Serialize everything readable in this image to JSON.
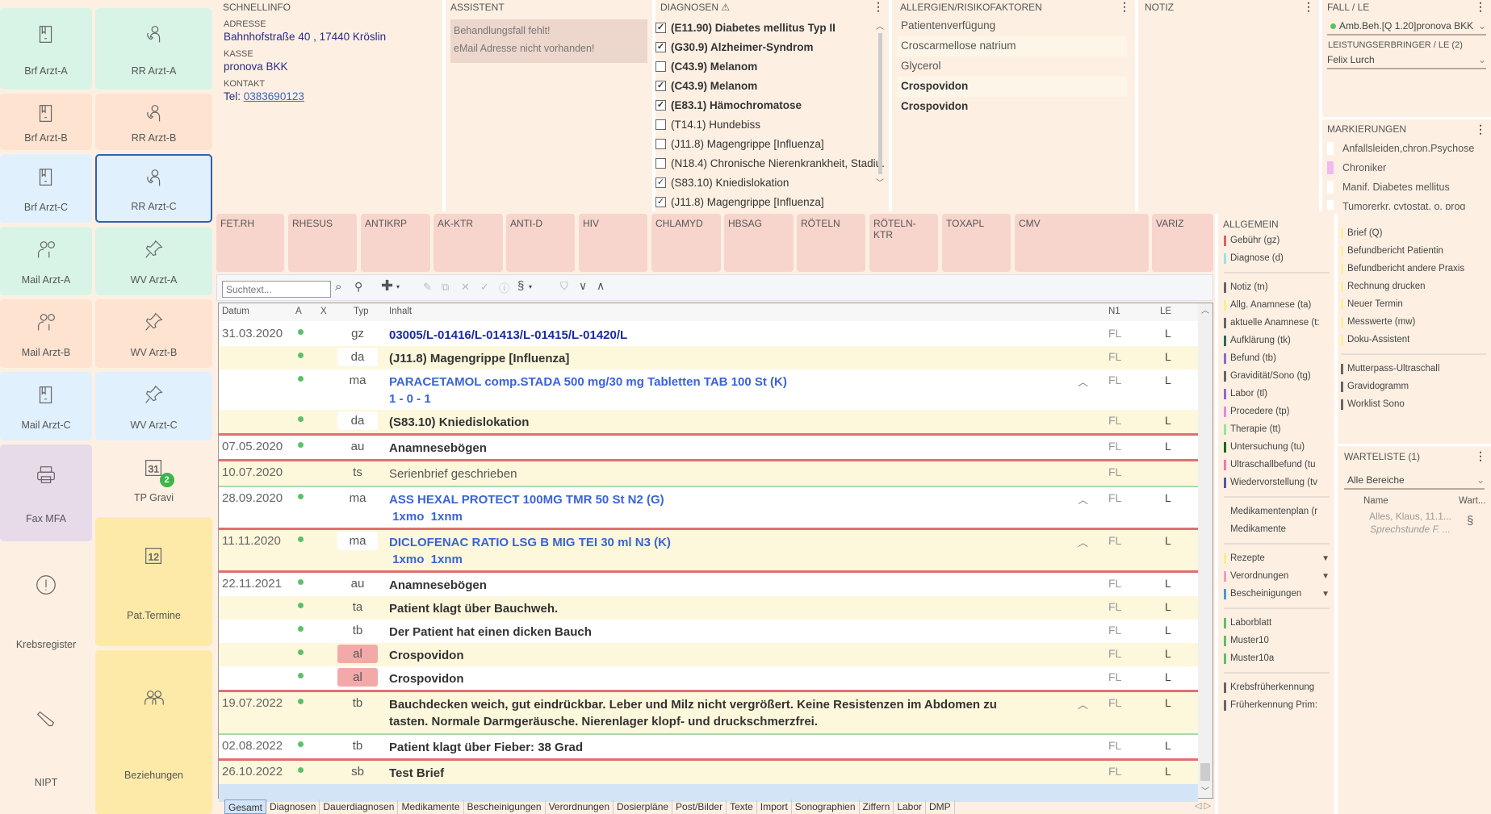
{
  "sidebar": {
    "tiles": [
      {
        "label": "Brf Arzt-A",
        "icon": "book-icon",
        "color": "#d8f4e7"
      },
      {
        "label": "RR Arzt-A",
        "icon": "phone-person-icon",
        "color": "#d8f4e7"
      },
      {
        "label": "Brf Arzt-B",
        "icon": "book-icon",
        "color": "#fde3d0"
      },
      {
        "label": "RR Arzt-B",
        "icon": "phone-person-icon",
        "color": "#fde3d0"
      },
      {
        "label": "Brf Arzt-C",
        "icon": "book-icon",
        "color": "#e0f0fd"
      },
      {
        "label": "RR Arzt-C",
        "icon": "phone-person-icon",
        "color": "#e0f0fd",
        "selected": true
      },
      {
        "label": "Mail Arzt-A",
        "icon": "mail-person-icon",
        "color": "#d8f4e7"
      },
      {
        "label": "WV Arzt-A",
        "icon": "pin-icon",
        "color": "#d8f4e7"
      },
      {
        "label": "Mail Arzt-B",
        "icon": "mail-person-icon",
        "color": "#fde3d0"
      },
      {
        "label": "WV Arzt-B",
        "icon": "pin-icon",
        "color": "#fde3d0"
      },
      {
        "label": "Mail Arzt-C",
        "icon": "book-icon",
        "color": "#e0f0fd"
      },
      {
        "label": "WV Arzt-C",
        "icon": "pin-icon",
        "color": "#e0f0fd"
      },
      {
        "label": "Fax MFA",
        "icon": "printer-icon",
        "color": "#e7dbea"
      },
      {
        "label": "TP Gravi",
        "icon": "calendar-31-icon",
        "color": "#fdefe2",
        "badge": "2"
      },
      {
        "label": "Pat.Termine",
        "icon": "calendar-12-icon",
        "color": "#fdeaa8"
      },
      {
        "label": "Krebsregister",
        "icon": "alert-circle-icon",
        "color": "#fdefe2"
      },
      {
        "label": "NIPT",
        "icon": "pen-icon",
        "color": "#fdefe2"
      },
      {
        "label": "Beziehungen",
        "icon": "people-icon",
        "color": "#fdeaa8"
      }
    ]
  },
  "schnellinfo": {
    "title": "SCHNELLINFO",
    "adresse_label": "ADRESSE",
    "adresse": "Bahnhofstraße 40 , 17440 Kröslin",
    "kasse_label": "KASSE",
    "kasse": "pronova BKK",
    "kontakt_label": "KONTAKT",
    "tel_prefix": "Tel: ",
    "tel": "0383690123"
  },
  "assistent": {
    "title": "ASSISTENT",
    "messages": [
      "Behandlungsfall fehlt!",
      "eMail Adresse nicht vorhanden!"
    ]
  },
  "diagnosen": {
    "title": "DIAGNOSEN",
    "items": [
      {
        "text": "(E11.90) Diabetes mellitus Typ II",
        "checked": true,
        "bold": true
      },
      {
        "text": "(G30.9) Alzheimer-Syndrom",
        "checked": true,
        "bold": true
      },
      {
        "text": "(C43.9) Melanom",
        "checked": false,
        "bold": true
      },
      {
        "text": "(C43.9) Melanom",
        "checked": true,
        "bold": true
      },
      {
        "text": "(E83.1) Hämochromatose",
        "checked": true,
        "bold": true
      },
      {
        "text": "(T14.1) Hundebiss",
        "checked": false,
        "bold": false
      },
      {
        "text": "(J11.8) Magengrippe [Influenza]",
        "checked": false,
        "bold": false
      },
      {
        "text": "(N18.4) Chronische Nierenkrankheit, Stadiu.",
        "checked": false,
        "bold": false
      },
      {
        "text": "(S83.10) Kniedislokation",
        "checked": true,
        "bold": false
      },
      {
        "text": "(J11.8) Magengrippe [Influenza]",
        "checked": true,
        "bold": false
      }
    ]
  },
  "allergien": {
    "title": "ALLERGIEN/RISIKOFAKTOREN",
    "items": [
      {
        "text": "Patientenverfügung",
        "bold": false,
        "hl": false
      },
      {
        "text": "Croscarmellose natrium",
        "bold": false,
        "hl": true
      },
      {
        "text": "Glycerol",
        "bold": false,
        "hl": false
      },
      {
        "text": "Crospovidon",
        "bold": true,
        "hl": true
      },
      {
        "text": "Crospovidon",
        "bold": true,
        "hl": false
      }
    ]
  },
  "notiz": {
    "title": "NOTIZ"
  },
  "fall": {
    "title": "FALL / LE",
    "selected": "Amb.Beh.[Q 1.20]pronova BKK",
    "le_label": "LEISTUNGSERBRINGER / LE (2)",
    "le_value": "Felix Lurch"
  },
  "markierungen": {
    "title": "MARKIERUNGEN",
    "items": [
      {
        "text": "Anfallsleiden,chron.Psychose",
        "color": "#ffffff"
      },
      {
        "text": "Chroniker",
        "color": "#f2b8f0"
      },
      {
        "text": "Manif. Diabetes mellitus",
        "color": "#ffffff"
      },
      {
        "text": "Tumorerkr. cytostat. o. prog",
        "color": "#ffffff"
      }
    ]
  },
  "labs": [
    "FET.RH",
    "RHESUS",
    "ANTIKRP",
    "AK-KTR",
    "ANTI-D",
    "HIV",
    "CHLAMYD",
    "HBSAG",
    "RÖTELN",
    "RÖTELN-KTR",
    "TOXAPL",
    "CMV",
    "VARIZ"
  ],
  "toolbar": {
    "search_placeholder": "Suchtext..."
  },
  "table": {
    "headers": {
      "datum": "Datum",
      "a": "A",
      "x": "X",
      "typ": "Typ",
      "inhalt": "Inhalt",
      "n1": "N1",
      "le": "LE"
    },
    "rows": [
      {
        "datum": "31.03.2020",
        "dot": true,
        "typ": "gz",
        "lines": [
          "03005/L-01416/L-01413/L-01415/L-01420/L"
        ],
        "style": "darkblue",
        "n1": "FL",
        "le": "L",
        "bg": "#ffffff"
      },
      {
        "datum": "",
        "dot": true,
        "typ": "da",
        "lines": [
          "(J11.8) Magengrippe [Influenza]"
        ],
        "style": "bold",
        "n1": "FL",
        "le": "L",
        "bg": "#fdf7dc",
        "typbox": true
      },
      {
        "datum": "",
        "dot": true,
        "typ": "ma",
        "lines": [
          "PARACETAMOL comp.STADA 500 mg/30 mg Tabletten TAB 100 St (K)",
          "1 - 0 - 1"
        ],
        "style": "blue",
        "caret": true,
        "n1": "FL",
        "le": "L",
        "bg": "#ffffff"
      },
      {
        "datum": "",
        "dot": true,
        "typ": "da",
        "lines": [
          "(S83.10) Kniedislokation"
        ],
        "style": "bold",
        "n1": "FL",
        "le": "L",
        "bg": "#fdf7dc",
        "typbox": true,
        "sep": "red"
      },
      {
        "datum": "07.05.2020",
        "dot": true,
        "typ": "au",
        "lines": [
          "Anamnesebögen"
        ],
        "style": "bold",
        "n1": "FL",
        "le": "L",
        "bg": "#ffffff",
        "sep": "red"
      },
      {
        "datum": "10.07.2020",
        "dot": false,
        "typ": "ts",
        "lines": [
          "Serienbrief geschrieben"
        ],
        "style": "normal",
        "n1": "FL",
        "le": "",
        "bg": "#fdf7dc",
        "sep": "green"
      },
      {
        "datum": "28.09.2020",
        "dot": true,
        "typ": "ma",
        "lines": [
          "ASS HEXAL PROTECT 100MG TMR 50 St N2 (G)",
          " 1xmo  1xnm"
        ],
        "style": "blue",
        "caret": true,
        "n1": "FL",
        "le": "L",
        "bg": "#ffffff",
        "sep": "red"
      },
      {
        "datum": "11.11.2020",
        "dot": true,
        "typ": "ma",
        "lines": [
          "DICLOFENAC RATIO LSG B MIG TEI 30 ml N3 (K)",
          " 1xmo  1xnm"
        ],
        "style": "blue",
        "caret": true,
        "n1": "FL",
        "le": "L",
        "bg": "#fdf7dc",
        "typbox": true,
        "sep": "red"
      },
      {
        "datum": "22.11.2021",
        "dot": true,
        "typ": "au",
        "lines": [
          "Anamnesebögen"
        ],
        "style": "bold",
        "n1": "FL",
        "le": "L",
        "bg": "#ffffff"
      },
      {
        "datum": "",
        "dot": true,
        "typ": "ta",
        "lines": [
          "Patient klagt über Bauchweh."
        ],
        "style": "bold",
        "n1": "FL",
        "le": "L",
        "bg": "#fdf7dc"
      },
      {
        "datum": "",
        "dot": true,
        "typ": "tb",
        "lines": [
          "Der Patient hat einen dicken Bauch"
        ],
        "style": "bold",
        "n1": "FL",
        "le": "L",
        "bg": "#ffffff"
      },
      {
        "datum": "",
        "dot": true,
        "typ": "al",
        "lines": [
          "Crospovidon"
        ],
        "style": "bold",
        "n1": "FL",
        "le": "L",
        "bg": "#fdf7dc",
        "typbadge": "#f4a9a9"
      },
      {
        "datum": "",
        "dot": true,
        "typ": "al",
        "lines": [
          "Crospovidon"
        ],
        "style": "bold",
        "n1": "FL",
        "le": "L",
        "bg": "#ffffff",
        "typbadge": "#f4a9a9",
        "sep": "red"
      },
      {
        "datum": "19.07.2022",
        "dot": true,
        "typ": "tb",
        "lines": [
          "Bauchdecken weich, gut eindrückbar. Leber und Milz nicht vergrößert. Keine Resistenzen im Abdomen zu",
          "tasten. Normale Darmgeräusche. Nierenlager klopf- und druckschmerzfrei."
        ],
        "style": "bold",
        "caret": true,
        "n1": "FL",
        "le": "L",
        "bg": "#fdf7dc",
        "sep": "green"
      },
      {
        "datum": "02.08.2022",
        "dot": true,
        "typ": "tb",
        "lines": [
          "Patient klagt über Fieber: 38 Grad"
        ],
        "style": "bold",
        "n1": "FL",
        "le": "L",
        "bg": "#ffffff",
        "sep": "red"
      },
      {
        "datum": "26.10.2022",
        "dot": true,
        "typ": "sb",
        "lines": [
          "Test Brief"
        ],
        "style": "bold",
        "n1": "FL",
        "le": "L",
        "bg": "#fdf7dc"
      }
    ]
  },
  "bottom_tabs": [
    "Gesamt",
    "Diagnosen",
    "Dauerdiagnosen",
    "Medikamente",
    "Bescheinigungen",
    "Verordnungen",
    "Dosierpläne",
    "Post/Bilder",
    "Texte",
    "Import",
    "Sonographien",
    "Ziffern",
    "Labor",
    "DMP"
  ],
  "allgemein": {
    "title": "ALLGEMEIN",
    "groups": [
      [
        {
          "text": "Gebühr (gz)",
          "color": "#e06060"
        },
        {
          "text": "Diagnose (d)",
          "color": "#8ee8e8"
        }
      ],
      [
        {
          "text": "Notiz (tn)",
          "color": "#666"
        },
        {
          "text": "Allg. Anamnese (ta)",
          "color": "#f5f08a"
        },
        {
          "text": "aktuelle Anamnese (t:",
          "color": "#666"
        },
        {
          "text": "Aufklärung (tk)",
          "color": "#2a6a5a"
        },
        {
          "text": "Befund (tb)",
          "color": "#8a6ad8"
        },
        {
          "text": "Gravidität/Sono (tg)",
          "color": "#666"
        },
        {
          "text": "Labor (tl)",
          "color": "#8a6ad8"
        },
        {
          "text": "Procedere (tp)",
          "color": "#e888e8"
        },
        {
          "text": "Therapie (tt)",
          "color": "#8ee89a"
        },
        {
          "text": "Untersuchung (tu)",
          "color": "#1a6a1a"
        },
        {
          "text": "Ultraschallbefund (tu",
          "color": "#f07ab0"
        },
        {
          "text": "Wiedervorstellung (tv",
          "color": "#4a5aa8"
        }
      ],
      [
        {
          "text": "Medikamentenplan (r",
          "color": ""
        },
        {
          "text": "Medikamente",
          "color": ""
        }
      ],
      [
        {
          "text": "Rezepte",
          "color": "#f5f08a",
          "chevron": true
        },
        {
          "text": "Verordnungen",
          "color": "#f0a0c0",
          "chevron": true
        },
        {
          "text": "Bescheinigungen",
          "color": "#3aa0e0",
          "chevron": true
        }
      ],
      [
        {
          "text": "Laborblatt",
          "color": "#5cc06a"
        },
        {
          "text": "Muster10",
          "color": "#5cc06a"
        },
        {
          "text": "Muster10a",
          "color": "#5cc06a"
        }
      ],
      [
        {
          "text": "Krebsfrüherkennung",
          "color": "#666"
        },
        {
          "text": "Früherkennung Prim:",
          "color": "#666"
        }
      ]
    ]
  },
  "vorlagen": {
    "groups": [
      [
        {
          "text": "Brief (Q)",
          "color": "#f8f0a0"
        },
        {
          "text": "Befundbericht Patientin",
          "color": "#f8f0a0"
        },
        {
          "text": "Befundbericht andere Praxis",
          "color": "#f8f0a0"
        },
        {
          "text": "Rechnung drucken",
          "color": "#f8f0a0"
        },
        {
          "text": "Neuer Termin",
          "color": "#f8f0a0"
        },
        {
          "text": "Messwerte (mw)",
          "color": "#f8f0a0"
        },
        {
          "text": "Doku-Assistent",
          "color": "#f8f0a0"
        }
      ],
      [
        {
          "text": "Mutterpass-Ultraschall",
          "color": "#666"
        },
        {
          "text": "Gravidogramm",
          "color": "#666"
        },
        {
          "text": "Worklist Sono",
          "color": "#666"
        }
      ]
    ]
  },
  "warteliste": {
    "title": "WARTELISTE  (1)",
    "filter": "Alle Bereiche",
    "col_name": "Name",
    "col_wart": "Wart...",
    "entry_name": "Alles, Klaus, 11.1...",
    "entry_sub": "Sprechstunde F. ..."
  }
}
